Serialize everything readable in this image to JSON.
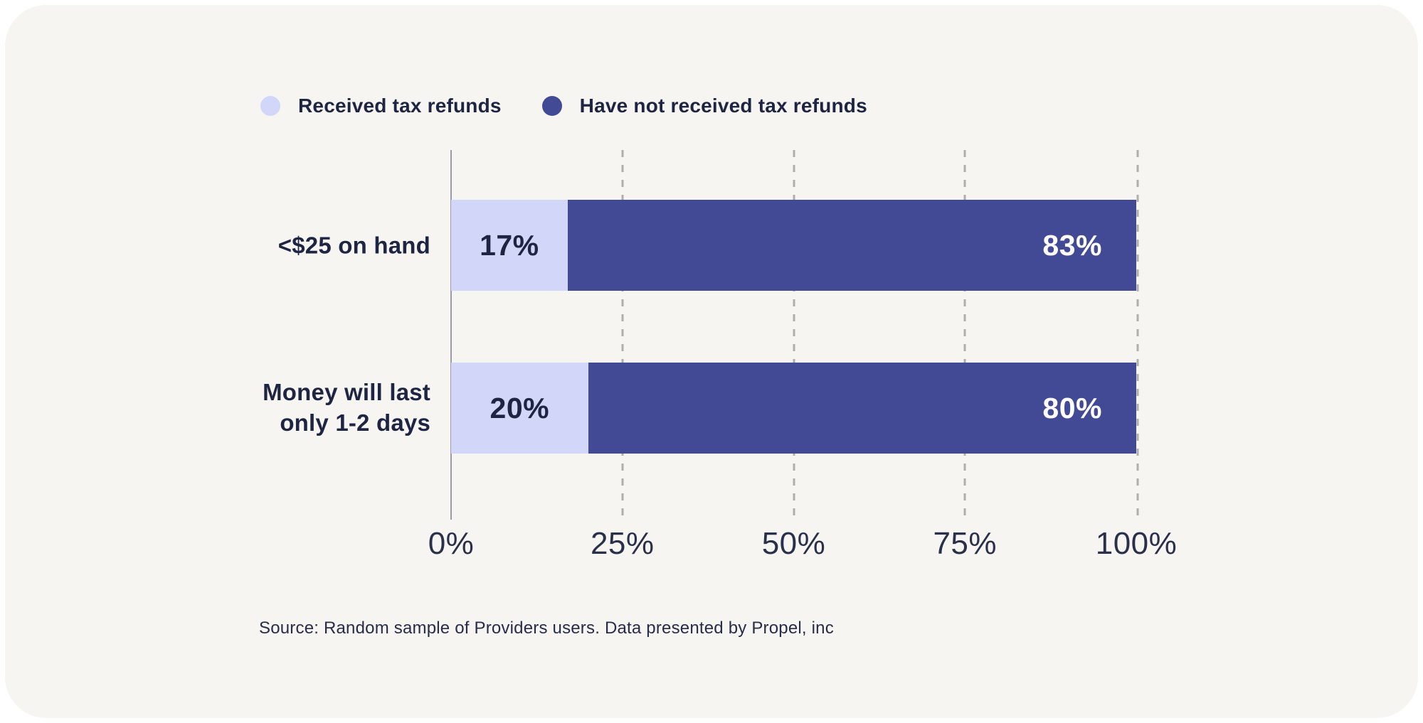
{
  "chart_data": {
    "type": "bar",
    "orientation": "horizontal",
    "stacked": true,
    "title": "",
    "categories": [
      "<$25 on hand",
      "Money will last only 1-2 days"
    ],
    "categories_display": [
      "<$25 on hand",
      "Money will last\nonly 1-2 days"
    ],
    "series": [
      {
        "name": "Received tax refunds",
        "color": "#D2D6F8",
        "label_color": "#1D2543",
        "values": [
          17,
          20
        ],
        "value_labels": [
          "17%",
          "20%"
        ]
      },
      {
        "name": "Have not received tax refunds",
        "color": "#424A96",
        "label_color": "#FFFFFF",
        "values": [
          83,
          80
        ],
        "value_labels": [
          "83%",
          "80%"
        ]
      }
    ],
    "x_ticks": [
      {
        "label": "0%",
        "value": 0
      },
      {
        "label": "25%",
        "value": 25
      },
      {
        "label": "50%",
        "value": 50
      },
      {
        "label": "75%",
        "value": 75
      },
      {
        "label": "100%",
        "value": 100
      }
    ],
    "xlim": [
      0,
      100
    ],
    "grid": "dashed-vertical-gridlines",
    "legend_position": "top-left"
  },
  "source": {
    "text": "Source: Random sample of Providers users. Data presented by Propel, inc"
  },
  "colors": {
    "page_bg": "#FFFFFF",
    "card_bg": "#F7F5F1",
    "axis_line": "#9A9DA8",
    "gridline": "#AEAEAC",
    "text_navy": "#1D2543",
    "series_light": "#D2D6F8",
    "series_dark": "#424A96"
  },
  "layout": {
    "bar_row_tops": [
      70,
      299
    ]
  }
}
